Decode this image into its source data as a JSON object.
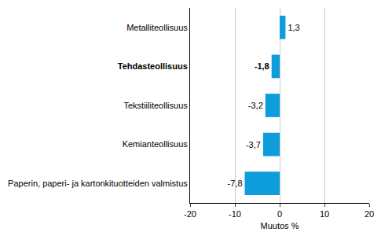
{
  "chart_data": {
    "type": "bar",
    "orientation": "horizontal",
    "categories": [
      "Metalliteollisuus",
      "Tehdasteollisuus",
      "Tekstiiliteollisuus",
      "Kemianteollisuus",
      "Paperin, paperi- ja kartonkituotteiden valmistus"
    ],
    "values": [
      1.3,
      -1.8,
      -3.2,
      -3.7,
      -7.8
    ],
    "value_labels": [
      "1,3",
      "-1,8",
      "-3,2",
      "-3,7",
      "-7,8"
    ],
    "data_labels": true,
    "color": "#0d9ddb",
    "xlabel": "Muutos %",
    "xlim": [
      -20,
      20
    ],
    "xticks": [
      -20,
      -10,
      0,
      10,
      20
    ],
    "grid": true
  }
}
